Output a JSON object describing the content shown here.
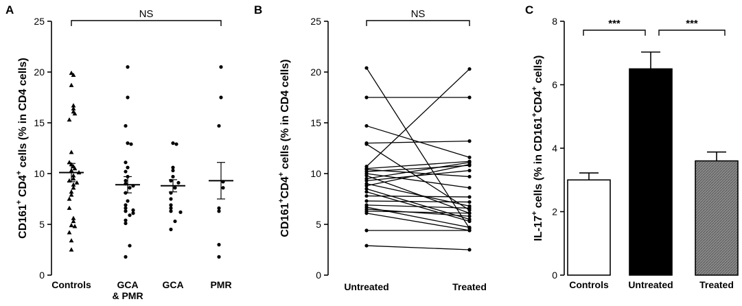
{
  "chart_data": [
    {
      "panel": "A",
      "type": "scatter",
      "ylabel": [
        "CD161",
        "+",
        " CD4",
        "+",
        " cells (% in CD4 cells)"
      ],
      "ylim": [
        0,
        25
      ],
      "yticks": [
        "0",
        "5",
        "10",
        "15",
        "20",
        "25"
      ],
      "categories": [
        [
          "Controls"
        ],
        [
          "GCA",
          "& PMR"
        ],
        [
          "GCA"
        ],
        [
          "PMR"
        ]
      ],
      "series": [
        {
          "category": 0,
          "marker": "triangle",
          "mean": 10.1,
          "sem": 0.9,
          "values": [
            19.9,
            19.7,
            18.7,
            16.7,
            16.4,
            16.1,
            15.9,
            15.3,
            12.1,
            11.1,
            10.9,
            10.7,
            10.5,
            10.3,
            10.1,
            9.8,
            9.5,
            9.3,
            9.1,
            8.9,
            8.6,
            8.2,
            7.9,
            7.5,
            6.6,
            5.6,
            5.3,
            4.9,
            4.8,
            4.2,
            3.4,
            2.5
          ]
        },
        {
          "category": 1,
          "marker": "dot",
          "mean": 8.9,
          "sem": 0.8,
          "values": [
            20.5,
            17.5,
            14.7,
            13.0,
            12.9,
            11.1,
            10.6,
            10.2,
            9.7,
            9.3,
            9.0,
            8.8,
            8.6,
            8.1,
            7.3,
            6.9,
            6.6,
            6.4,
            6.3,
            6.1,
            5.9,
            5.4,
            5.1,
            2.9,
            1.8
          ]
        },
        {
          "category": 2,
          "marker": "dot",
          "mean": 8.8,
          "sem": 0.6,
          "values": [
            13.0,
            12.9,
            10.6,
            10.3,
            9.7,
            9.3,
            9.1,
            8.6,
            8.1,
            7.5,
            6.9,
            6.6,
            6.3,
            6.2,
            5.3,
            4.5
          ]
        },
        {
          "category": 3,
          "marker": "dot",
          "mean": 9.3,
          "sem": 1.8,
          "values": [
            20.5,
            17.5,
            14.7,
            9.2,
            8.6,
            6.6,
            6.3,
            3.0,
            1.8
          ]
        }
      ],
      "annotations": [
        {
          "text": "NS",
          "from": 0,
          "to": 3
        }
      ]
    },
    {
      "panel": "B",
      "type": "line",
      "ylabel": [
        "CD161",
        "+",
        "CD4",
        "+",
        " cells (% in CD4 cells)"
      ],
      "ylim": [
        0,
        25
      ],
      "yticks": [
        "0",
        "5",
        "10",
        "15",
        "20",
        "25"
      ],
      "categories": [
        "Untreated",
        "Treated"
      ],
      "pairs": [
        [
          20.4,
          4.6
        ],
        [
          17.5,
          17.5
        ],
        [
          14.7,
          11.6
        ],
        [
          13.0,
          13.2
        ],
        [
          12.9,
          6.4
        ],
        [
          10.7,
          20.3
        ],
        [
          10.5,
          11.2
        ],
        [
          10.4,
          9.7
        ],
        [
          10.2,
          10.8
        ],
        [
          10.0,
          8.6
        ],
        [
          9.8,
          6.1
        ],
        [
          9.5,
          11.1
        ],
        [
          9.3,
          10.3
        ],
        [
          9.0,
          6.8
        ],
        [
          8.8,
          10.9
        ],
        [
          8.5,
          5.5
        ],
        [
          8.2,
          5.3
        ],
        [
          7.8,
          7.7
        ],
        [
          7.3,
          7.2
        ],
        [
          6.9,
          6.6
        ],
        [
          6.7,
          4.7
        ],
        [
          6.5,
          5.8
        ],
        [
          6.3,
          6.1
        ],
        [
          6.1,
          4.4
        ],
        [
          4.4,
          4.4
        ],
        [
          2.9,
          2.5
        ]
      ],
      "annotations": [
        {
          "text": "NS",
          "from": 0,
          "to": 1
        }
      ]
    },
    {
      "panel": "C",
      "type": "bar",
      "ylabel": [
        "IL-17",
        "+",
        " cells (% in CD161",
        "+",
        "CD4",
        "+",
        " cells)"
      ],
      "ylim": [
        0,
        8
      ],
      "yticks": [
        "0",
        "2",
        "4",
        "6",
        "8"
      ],
      "categories": [
        "Controls",
        "Untreated",
        "Treated"
      ],
      "values": [
        3.0,
        6.5,
        3.6
      ],
      "errors": [
        0.22,
        0.53,
        0.28
      ],
      "fills": [
        "#ffffff",
        "#000000",
        "#8a8a8a"
      ],
      "annotations": [
        {
          "text": "***",
          "from": 0,
          "to": 1
        },
        {
          "text": "***",
          "from": 1,
          "to": 2
        }
      ]
    }
  ]
}
